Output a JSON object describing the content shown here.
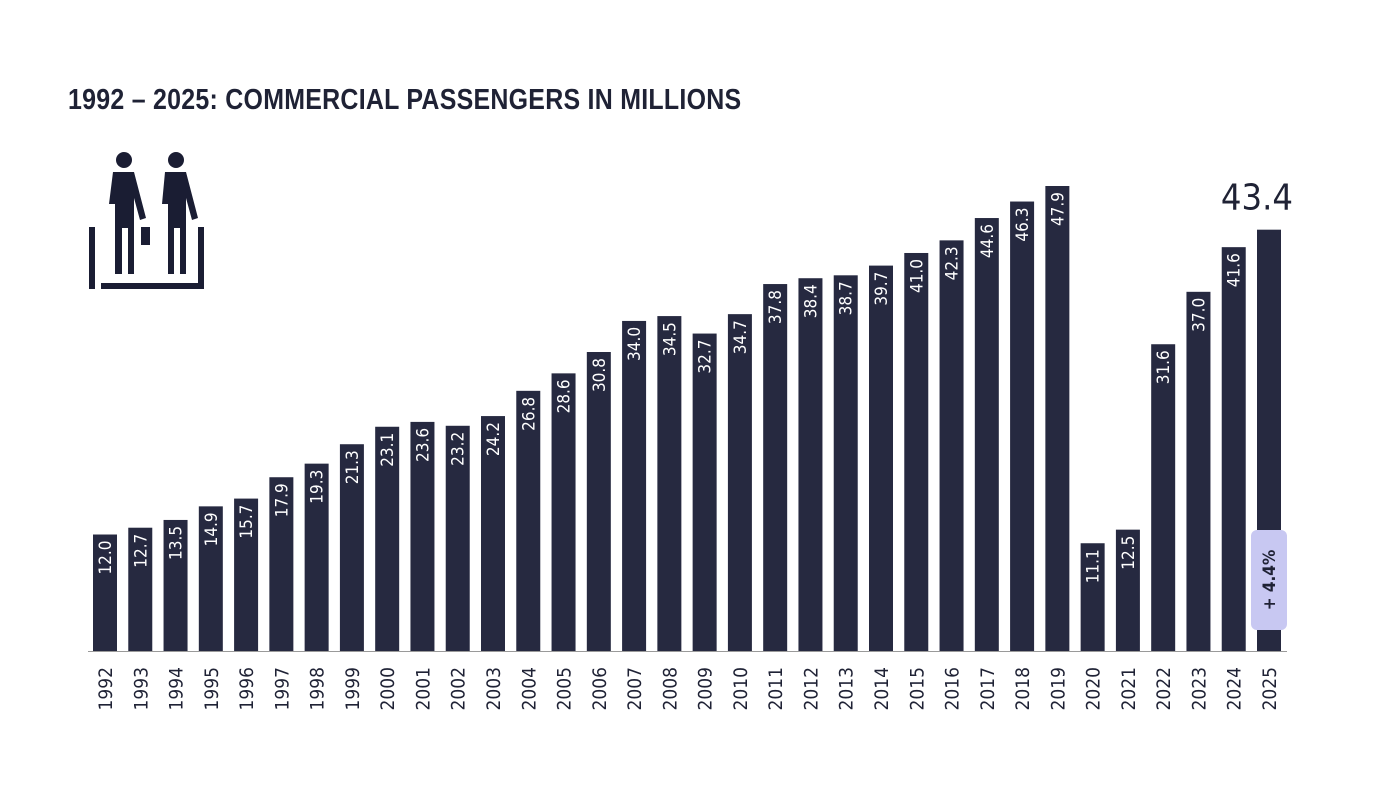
{
  "chart_data": {
    "type": "bar",
    "title": "1992 – 2025: COMMERCIAL PASSENGERS IN MILLIONS",
    "xlabel": "",
    "ylabel": "",
    "categories": [
      "1992",
      "1993",
      "1994",
      "1995",
      "1996",
      "1997",
      "1998",
      "1999",
      "2000",
      "2001",
      "2002",
      "2003",
      "2004",
      "2005",
      "2006",
      "2007",
      "2008",
      "2009",
      "2010",
      "2011",
      "2012",
      "2013",
      "2014",
      "2015",
      "2016",
      "2017",
      "2018",
      "2019",
      "2020",
      "2021",
      "2022",
      "2023",
      "2024",
      "2025"
    ],
    "values": [
      12.0,
      12.7,
      13.5,
      14.9,
      15.7,
      17.9,
      19.3,
      21.3,
      23.1,
      23.6,
      23.2,
      24.2,
      26.8,
      28.6,
      30.8,
      34.0,
      34.5,
      32.7,
      34.7,
      37.8,
      38.4,
      38.7,
      39.7,
      41.0,
      42.3,
      44.6,
      46.3,
      47.9,
      11.1,
      12.5,
      31.6,
      37.0,
      41.6,
      43.4
    ],
    "ylim": [
      0,
      47.9
    ],
    "grid": false,
    "highlight": {
      "category": "2025",
      "value_label": "43.4",
      "change_badge": "+ 4.4%"
    },
    "icon": "passengers-escalator-icon",
    "colors": {
      "bar": "#262940",
      "bar_label": "#ffffff",
      "badge": "#c8c8f2",
      "text": "#1f2235",
      "axis": "#9a9a9a"
    }
  }
}
